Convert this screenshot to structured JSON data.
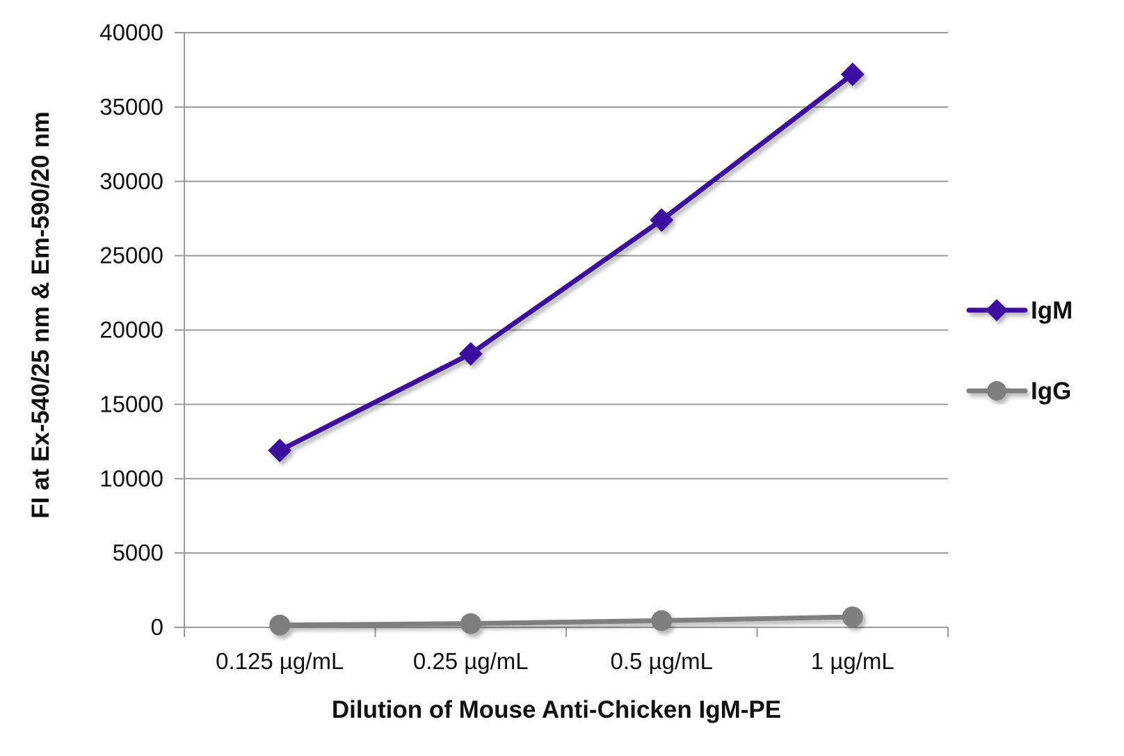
{
  "chart_data": {
    "type": "line",
    "title": "",
    "xlabel": "Dilution of Mouse Anti-Chicken IgM-PE",
    "ylabel": "FI at Ex-540/25 nm & Em-590/20 nm",
    "categories": [
      "0.125 µg/mL",
      "0.25 µg/mL",
      "0.5 µg/mL",
      "1 µg/mL"
    ],
    "ylim": [
      0,
      40000
    ],
    "yticks": [
      "0",
      "5000",
      "10000",
      "15000",
      "20000",
      "25000",
      "30000",
      "35000",
      "40000"
    ],
    "grid": true,
    "legend_position": "right",
    "series": [
      {
        "name": "IgM",
        "values": [
          11900,
          18400,
          27400,
          37200
        ],
        "color": "#3d0a9e",
        "marker": "diamond"
      },
      {
        "name": "IgG",
        "values": [
          150,
          250,
          450,
          700
        ],
        "color": "#7f7f7f",
        "marker": "circle"
      }
    ]
  }
}
